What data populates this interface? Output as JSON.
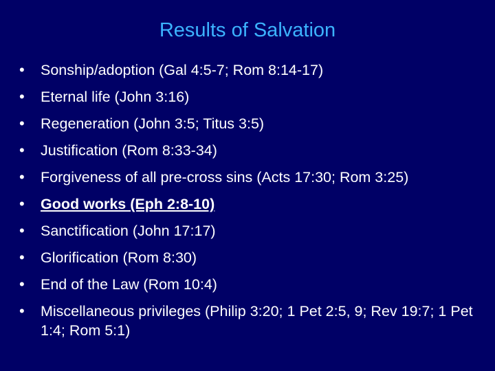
{
  "slide": {
    "title": "Results of Salvation",
    "bullet_symbol": "•",
    "bullets": [
      {
        "text": "Sonship/adoption (Gal 4:5-7; Rom 8:14-17)",
        "bold_underline": false
      },
      {
        "text": "Eternal life (John 3:16)",
        "bold_underline": false
      },
      {
        "text": "Regeneration (John 3:5; Titus 3:5)",
        "bold_underline": false
      },
      {
        "text": "Justification (Rom 8:33-34)",
        "bold_underline": false
      },
      {
        "text": "Forgiveness of all pre-cross sins (Acts 17:30; Rom 3:25)",
        "bold_underline": false
      },
      {
        "text": "Good works (Eph 2:8-10)",
        "bold_underline": true
      },
      {
        "text": "Sanctification (John 17:17)",
        "bold_underline": false
      },
      {
        "text": "Glorification (Rom 8:30)",
        "bold_underline": false
      },
      {
        "text": "End of the Law (Rom 10:4)",
        "bold_underline": false
      },
      {
        "text": "Miscellaneous privileges (Philip 3:20; 1 Pet 2:5, 9; Rev 19:7; 1 Pet 1:4; Rom 5:1)",
        "bold_underline": false
      }
    ]
  },
  "colors": {
    "background": "#000066",
    "title": "#3cb3ff",
    "text": "#ffffff"
  }
}
